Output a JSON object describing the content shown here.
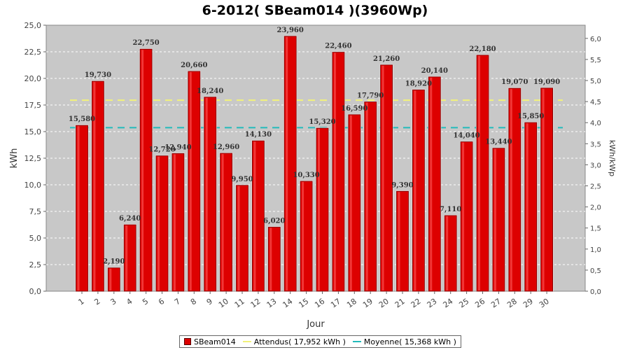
{
  "chart_data": {
    "type": "bar",
    "title": "6-2012( SBeam014 )(3960Wp)",
    "xlabel": "Jour",
    "ylabel": "kWh",
    "ylabel_right": "kWh/kWp",
    "ylim": [
      0,
      25
    ],
    "ylim_right": [
      0,
      6.3131
    ],
    "yticks": [
      "0,0",
      "2,5",
      "5,0",
      "7,5",
      "10,0",
      "12,5",
      "15,0",
      "17,5",
      "20,0",
      "22,5",
      "25,0"
    ],
    "yticks_right": [
      "0,0",
      "0,5",
      "1,0",
      "1,5",
      "2,0",
      "2,5",
      "3,0",
      "3,5",
      "4,0",
      "4,5",
      "5,0",
      "5,5",
      "6,0"
    ],
    "categories": [
      "1",
      "2",
      "3",
      "4",
      "5",
      "6",
      "7",
      "8",
      "9",
      "10",
      "11",
      "12",
      "13",
      "14",
      "15",
      "16",
      "17",
      "18",
      "19",
      "20",
      "21",
      "22",
      "23",
      "24",
      "25",
      "26",
      "27",
      "28",
      "29",
      "30"
    ],
    "series": [
      {
        "name": "SBeam014",
        "color": "#dd0000",
        "values": [
          15.58,
          19.73,
          2.19,
          6.24,
          22.75,
          12.72,
          12.94,
          20.66,
          18.24,
          12.96,
          9.95,
          14.13,
          6.02,
          23.96,
          10.33,
          15.32,
          22.46,
          16.59,
          17.79,
          21.26,
          9.39,
          18.92,
          20.14,
          7.11,
          14.04,
          22.18,
          13.44,
          19.07,
          15.85,
          19.09
        ],
        "labels": [
          "15,580",
          "19,730",
          "2,190",
          "6,240",
          "22,750",
          "12,720",
          "12,940",
          "20,660",
          "18,240",
          "12,960",
          "9,950",
          "14,130",
          "6,020",
          "23,960",
          "10,330",
          "15,320",
          "22,460",
          "16,590",
          "17,790",
          "21,260",
          "9,390",
          "18,920",
          "20,140",
          "7,110",
          "14,040",
          "22,180",
          "13,440",
          "19,070",
          "15,850",
          "19,090"
        ]
      }
    ],
    "reference_lines": [
      {
        "name": "Attendus( 17,952 kWh )",
        "value": 17.952,
        "color": "#f2f27a"
      },
      {
        "name": "Moyenne( 15,368 kWh )",
        "value": 15.368,
        "color": "#22bbbb"
      }
    ],
    "grid": true,
    "legend_position": "bottom"
  }
}
